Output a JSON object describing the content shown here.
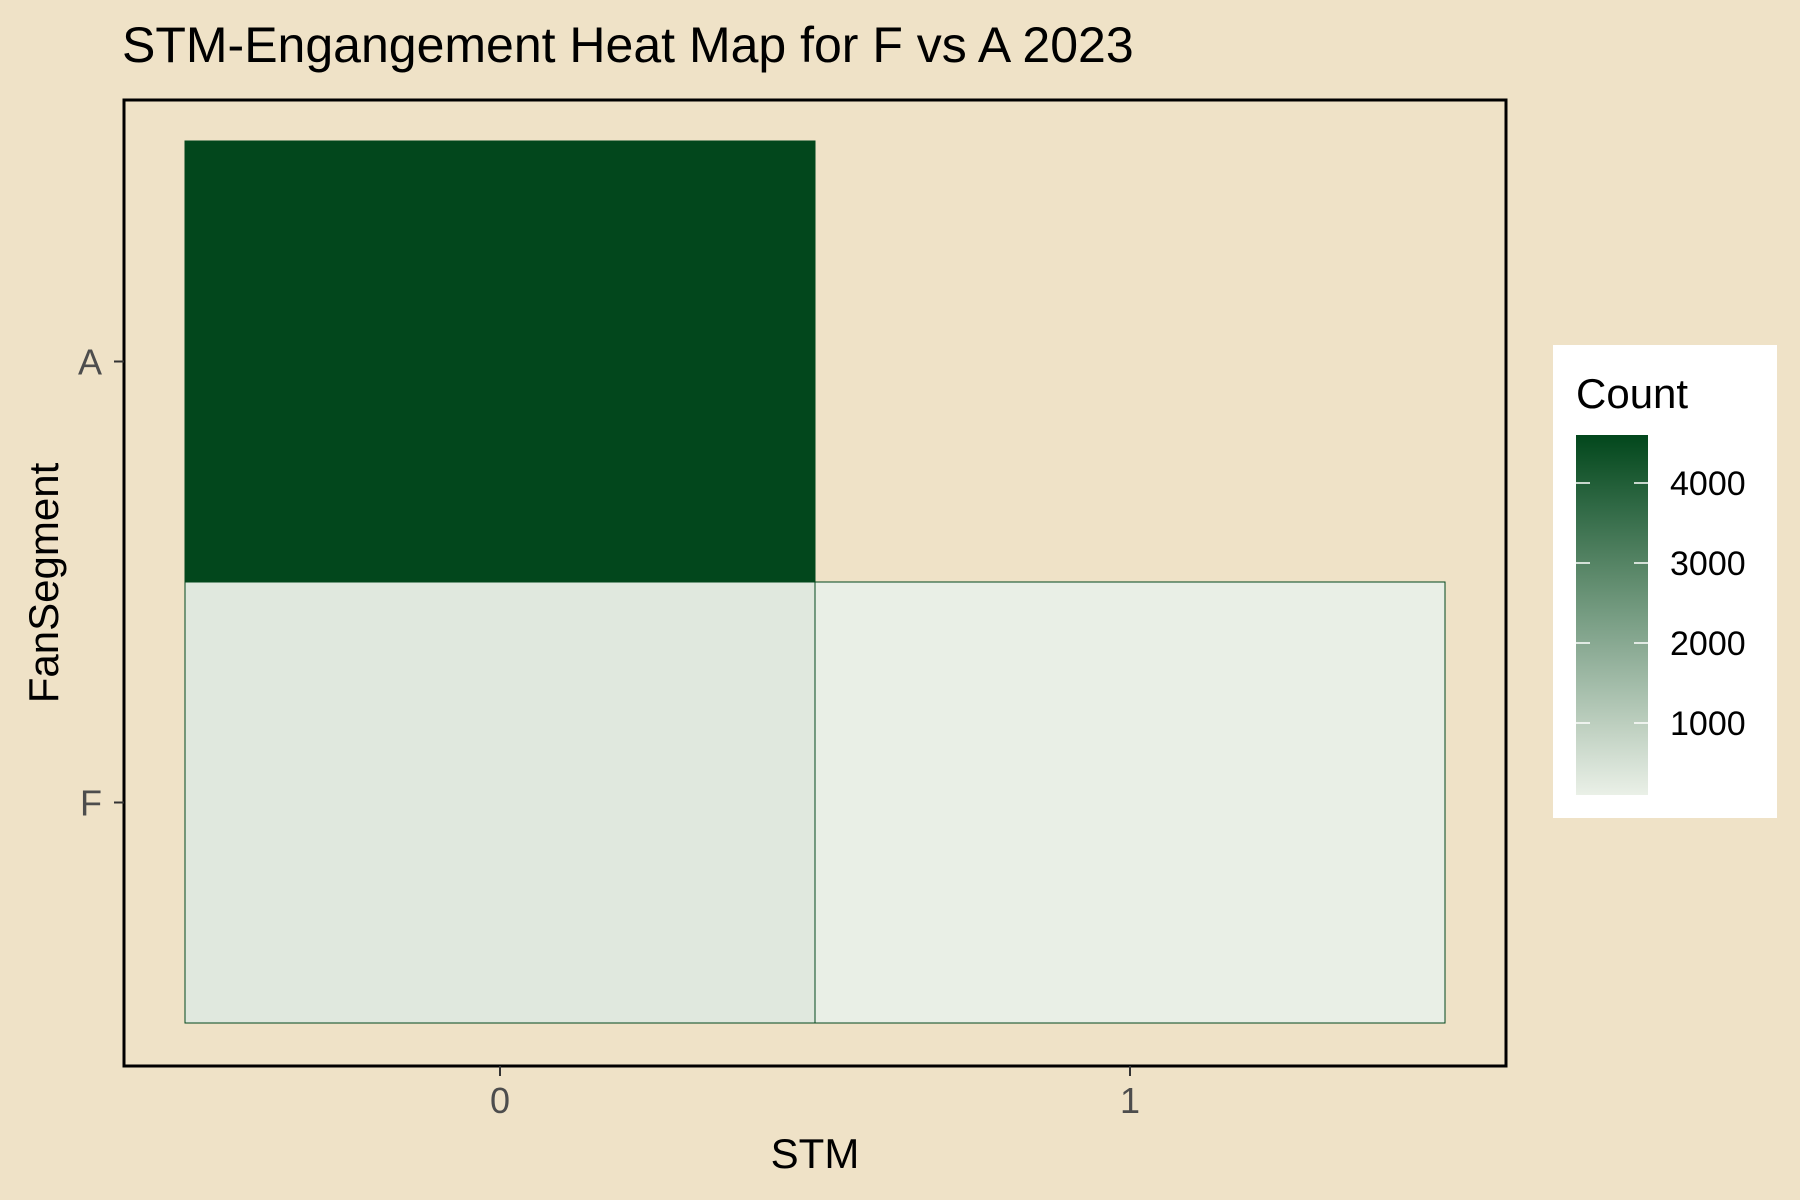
{
  "chart_data": {
    "type": "heatmap",
    "title": "STM-Engangement Heat Map for F vs A 2023",
    "xlabel": "STM",
    "ylabel": "FanSegment",
    "x_categories": [
      "0",
      "1"
    ],
    "y_categories": [
      "F",
      "A"
    ],
    "cells": [
      {
        "x": "0",
        "y": "A",
        "value": 4600
      },
      {
        "x": "0",
        "y": "F",
        "value": 300
      },
      {
        "x": "1",
        "y": "F",
        "value": 120
      }
    ],
    "legend": {
      "title": "Count",
      "ticks": [
        1000,
        2000,
        3000,
        4000
      ],
      "range": [
        100,
        4600
      ],
      "placement": "right"
    },
    "colors": {
      "low": "#eaf0e7",
      "high": "#02471c",
      "background": "#efe2c7",
      "cell_border": "#02471c"
    },
    "grid": false
  }
}
